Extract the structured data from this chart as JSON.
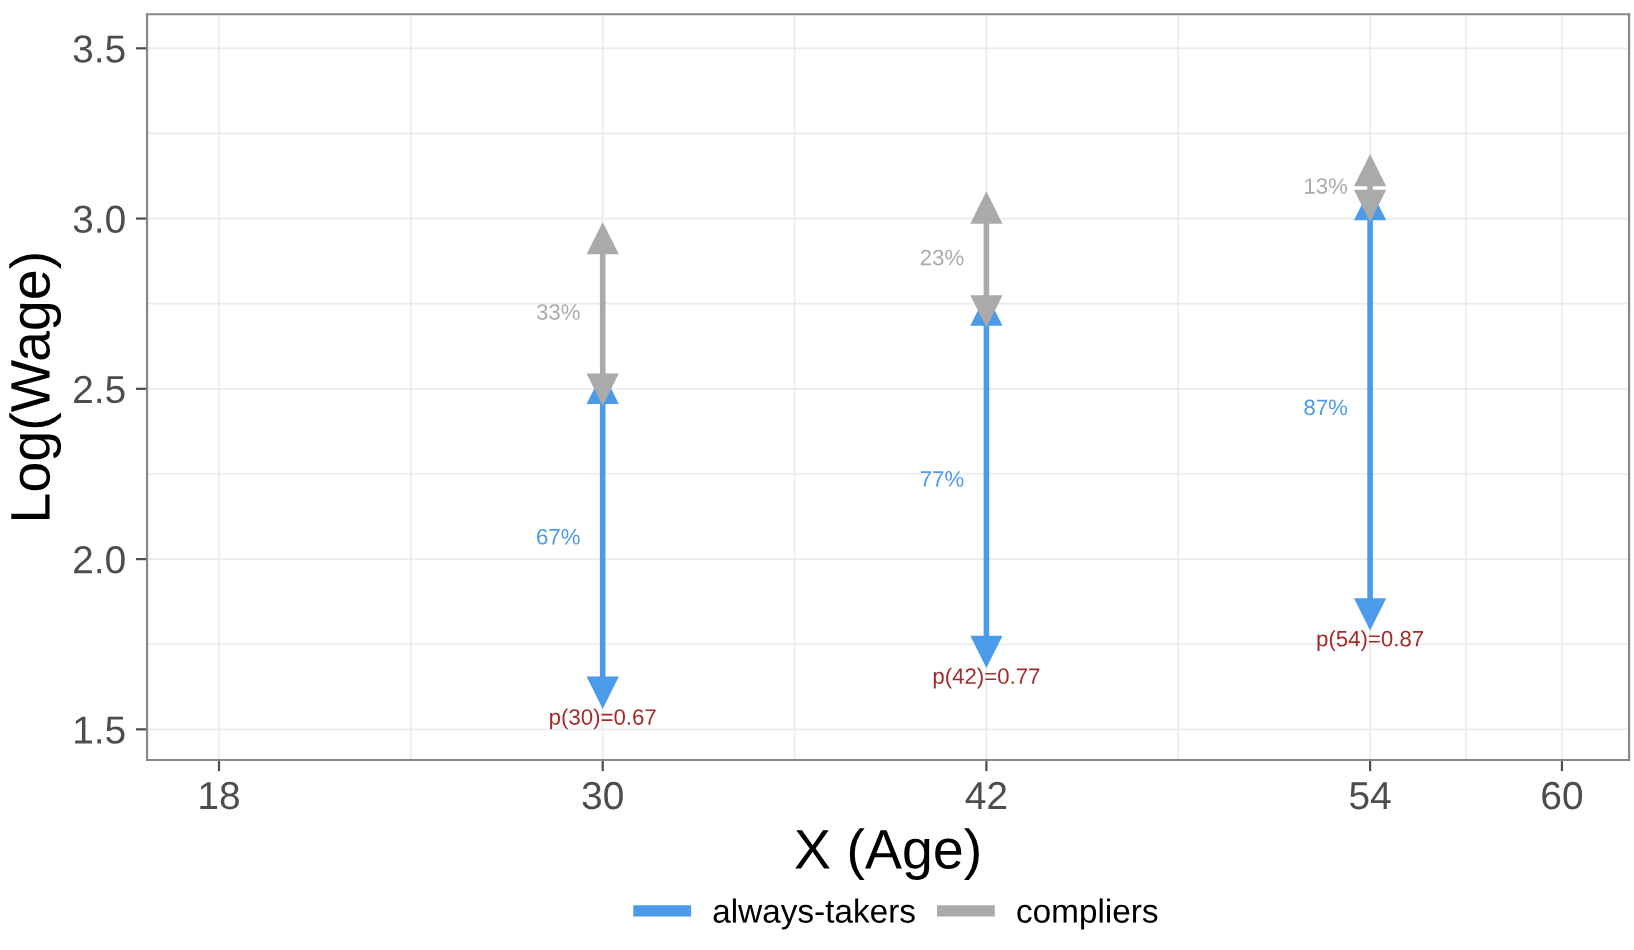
{
  "chart_data": {
    "type": "line",
    "xlabel": "X (Age)",
    "ylabel": "Log(Wage)",
    "series": [
      {
        "name": "always-takers",
        "color": "#4b9be8",
        "x": [
          30,
          30,
          null,
          42,
          42,
          null,
          54,
          54
        ],
        "values": [
          1.61,
          2.5,
          null,
          1.73,
          2.73,
          null,
          1.84,
          3.04
        ]
      },
      {
        "name": "compliers",
        "color": "#aaaaaa",
        "x": [
          30,
          30,
          null,
          42,
          42,
          null,
          54,
          54
        ],
        "values": [
          2.5,
          2.94,
          null,
          2.73,
          3.03,
          null,
          3.04,
          3.14
        ]
      }
    ],
    "annotations": [
      {
        "text": "67%",
        "x": 30,
        "y": 2.06
      },
      {
        "text": "77%",
        "x": 42,
        "y": 2.23
      },
      {
        "text": "87%",
        "x": 54,
        "y": 2.44
      },
      {
        "text": "33%",
        "x": 30,
        "y": 2.72
      },
      {
        "text": "23%",
        "x": 42,
        "y": 2.88
      },
      {
        "text": "13%",
        "x": 54,
        "y": 3.09
      },
      {
        "text": "p(30)=0.67",
        "x": 30,
        "y": 1.61
      },
      {
        "text": "p(42)=0.77",
        "x": 42,
        "y": 1.73
      },
      {
        "text": "p(54)=0.87",
        "x": 54,
        "y": 1.84
      }
    ],
    "xlim": [
      15.75,
      62.1
    ],
    "ylim": [
      1.41,
      3.6
    ],
    "xticks": [
      18,
      30,
      42,
      54,
      60
    ],
    "yticks": [
      {
        "value": 1.5,
        "label": "1.5"
      },
      {
        "value": 2,
        "label": "2.0"
      },
      {
        "value": 2.5,
        "label": "2.5"
      },
      {
        "value": 3,
        "label": "3.0"
      },
      {
        "value": 3.5,
        "label": "3.5"
      }
    ],
    "marker": "triangle",
    "grid": true,
    "legend": "bottom"
  }
}
